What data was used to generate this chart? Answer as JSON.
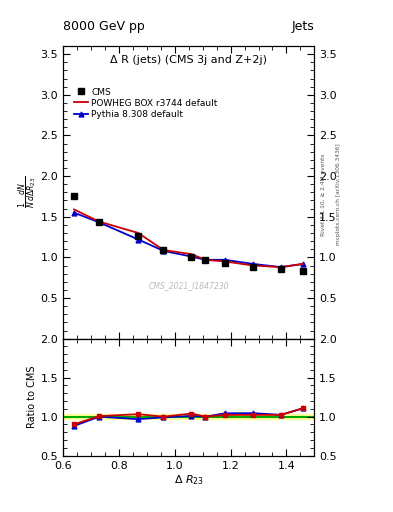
{
  "title": "Δ R (jets) (CMS 3j and Z+2j)",
  "header_left": "8000 GeV pp",
  "header_right": "Jets",
  "ylabel_main": "$\\frac{1}{N}\\frac{dN}{d\\Delta R_{23}}$",
  "ylabel_ratio": "Ratio to CMS",
  "xlabel": "$\\Delta\\ R_{23}$",
  "watermark": "CMS_2021_I1847230",
  "right_label": "Rivet 3.1.10, ≥ 2.4M events",
  "right_label2": "mcplots.cern.ch [arXiv:1306.3436]",
  "cms_x": [
    0.64,
    0.73,
    0.87,
    0.96,
    1.06,
    1.11,
    1.18,
    1.28,
    1.38,
    1.46
  ],
  "cms_y": [
    1.76,
    1.43,
    1.26,
    1.09,
    1.0,
    0.97,
    0.93,
    0.88,
    0.86,
    0.83
  ],
  "powheg_x": [
    0.64,
    0.73,
    0.87,
    0.96,
    1.06,
    1.11,
    1.18,
    1.28,
    1.38,
    1.46
  ],
  "powheg_y": [
    1.59,
    1.44,
    1.3,
    1.09,
    1.04,
    0.97,
    0.95,
    0.9,
    0.88,
    0.92
  ],
  "pythia_x": [
    0.64,
    0.73,
    0.87,
    0.96,
    1.06,
    1.11,
    1.18,
    1.28,
    1.38,
    1.46
  ],
  "pythia_y": [
    1.55,
    1.43,
    1.22,
    1.08,
    1.01,
    0.97,
    0.97,
    0.92,
    0.88,
    0.92
  ],
  "ratio_powheg": [
    0.903,
    1.007,
    1.032,
    1.0,
    1.04,
    1.0,
    1.022,
    1.023,
    1.023,
    1.108
  ],
  "ratio_pythia": [
    0.881,
    1.0,
    0.968,
    0.991,
    1.01,
    1.0,
    1.043,
    1.045,
    1.023,
    1.108
  ],
  "cms_color": "#000000",
  "powheg_color": "#cc0000",
  "pythia_color": "#0000cc",
  "green_line_color": "#00aa00",
  "yellow_band_color": "#ffff99",
  "main_ylim": [
    0.0,
    3.6
  ],
  "main_yticks": [
    0.5,
    1.0,
    1.5,
    2.0,
    2.5,
    3.0,
    3.5
  ],
  "ratio_ylim": [
    0.5,
    2.0
  ],
  "ratio_yticks": [
    0.5,
    1.0,
    1.5,
    2.0
  ],
  "xlim": [
    0.6,
    1.5
  ]
}
